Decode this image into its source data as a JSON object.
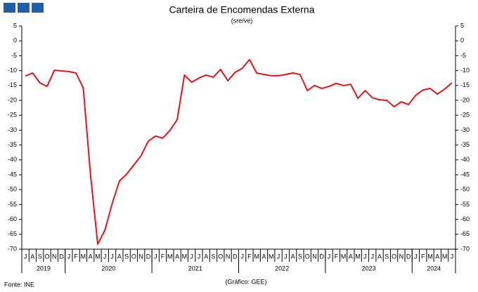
{
  "chart_data": {
    "type": "line",
    "title": "Carteira de Encomendas Externa",
    "subtitle": "(sre/ve)",
    "source": "Fonte: INE",
    "credit": "(Gráfico: GEE)",
    "categories": [
      "J",
      "A",
      "S",
      "O",
      "N",
      "D",
      "J",
      "F",
      "M",
      "A",
      "M",
      "J",
      "J",
      "A",
      "S",
      "O",
      "N",
      "D",
      "J",
      "F",
      "M",
      "A",
      "M",
      "J",
      "J",
      "A",
      "S",
      "O",
      "N",
      "D",
      "J",
      "F",
      "M",
      "A",
      "M",
      "J",
      "J",
      "A",
      "S",
      "O",
      "N",
      "D",
      "J",
      "F",
      "M",
      "A",
      "M",
      "J",
      "J",
      "A",
      "S",
      "O",
      "N",
      "D",
      "J",
      "F",
      "M",
      "A",
      "M",
      "J"
    ],
    "years": [
      "2019",
      "2020",
      "2021",
      "2022",
      "2023",
      "2024"
    ],
    "series": [
      {
        "name": "Carteira de Encomendas Externa",
        "color": "#e2141b",
        "values": [
          -11.8,
          -10.8,
          -14.1,
          -15.3,
          -9.9,
          -10.1,
          -10.3,
          -10.8,
          -15.8,
          -44.8,
          -68.3,
          -63.6,
          -54.7,
          -47.1,
          -44.8,
          -41.7,
          -38.6,
          -33.7,
          -32.0,
          -32.7,
          -30.1,
          -26.4,
          -11.5,
          -13.9,
          -12.5,
          -11.5,
          -12.2,
          -9.6,
          -13.4,
          -10.6,
          -9.2,
          -6.3,
          -10.8,
          -11.3,
          -11.7,
          -11.7,
          -11.3,
          -10.8,
          -11.3,
          -16.7,
          -15.0,
          -16.0,
          -15.3,
          -14.3,
          -15.0,
          -14.6,
          -19.3,
          -16.7,
          -19.1,
          -19.8,
          -20.0,
          -22.1,
          -20.5,
          -21.4,
          -18.3,
          -16.5,
          -16.0,
          -17.9,
          -16.2,
          -14.1
        ]
      }
    ],
    "ylim": [
      -70,
      5
    ],
    "yticks": [
      5,
      0,
      -5,
      -10,
      -15,
      -20,
      -25,
      -30,
      -35,
      -40,
      -45,
      -50,
      -55,
      -60,
      -65,
      -70
    ],
    "grid": false
  }
}
